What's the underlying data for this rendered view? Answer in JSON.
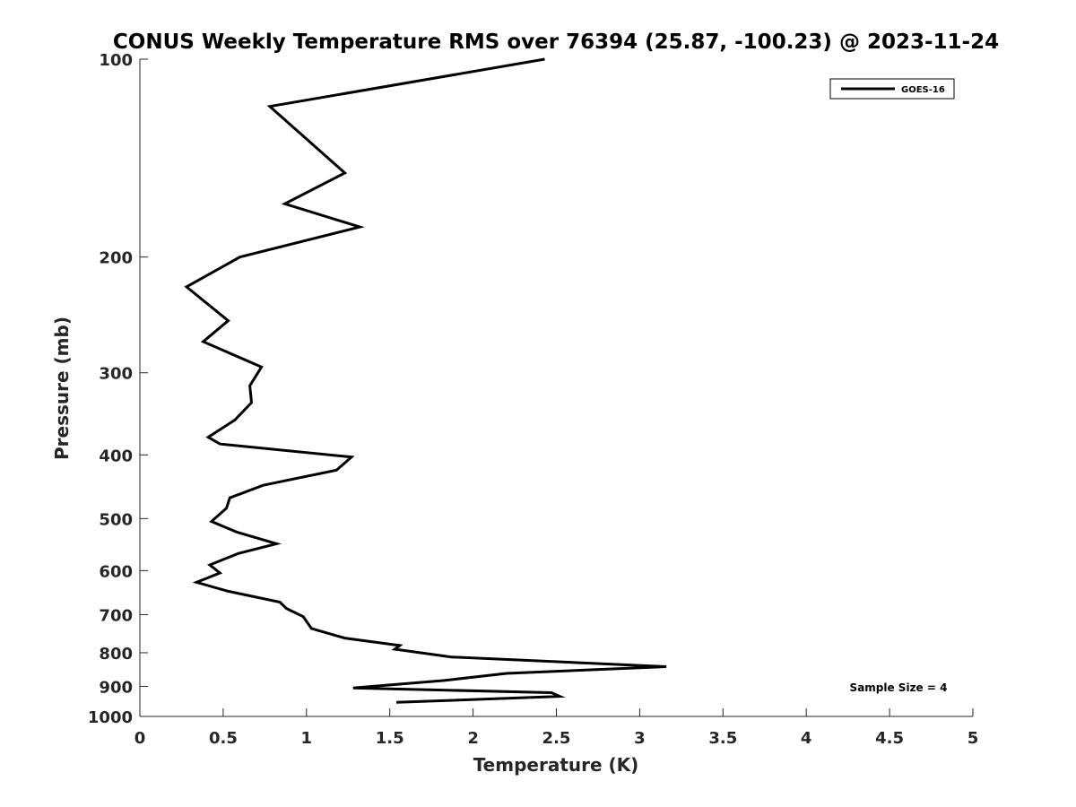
{
  "chart_data": {
    "type": "line",
    "title": "CONUS Weekly Temperature RMS over 76394 (25.87, -100.23) @ 2023-11-24",
    "xlabel": "Temperature (K)",
    "ylabel": "Pressure (mb)",
    "xlim": [
      0,
      5
    ],
    "ylim": [
      100,
      1000
    ],
    "yscale": "log",
    "y_reversed": true,
    "xticks": [
      0,
      0.5,
      1,
      1.5,
      2,
      2.5,
      3,
      3.5,
      4,
      4.5,
      5
    ],
    "xtick_labels": [
      "0",
      "0.5",
      "1",
      "1.5",
      "2",
      "2.5",
      "3",
      "3.5",
      "4",
      "4.5",
      "5"
    ],
    "yticks": [
      100,
      200,
      300,
      400,
      500,
      600,
      700,
      800,
      900,
      1000
    ],
    "ytick_labels": [
      "100",
      "200",
      "300",
      "400",
      "500",
      "600",
      "700",
      "800",
      "900",
      "1000"
    ],
    "grid": false,
    "legend_position": "top-right",
    "annotation": "Sample Size = 4",
    "series": [
      {
        "name": "GOES-16",
        "color": "#000000",
        "x": [
          2.43,
          0.78,
          1.23,
          0.87,
          1.32,
          0.6,
          0.28,
          0.53,
          0.38,
          0.73,
          0.66,
          0.67,
          0.57,
          0.41,
          0.48,
          1.27,
          1.18,
          0.74,
          0.54,
          0.52,
          0.43,
          0.58,
          0.82,
          0.59,
          0.42,
          0.48,
          0.34,
          0.53,
          0.84,
          0.88,
          0.98,
          1.03,
          1.23,
          1.56,
          1.53,
          1.87,
          3.16,
          2.2,
          1.82,
          1.28,
          2.47,
          2.52,
          1.54
        ],
        "y": [
          100,
          118,
          149,
          166,
          180,
          200,
          222,
          250,
          269,
          294,
          314,
          333,
          354,
          376,
          385,
          403,
          422,
          445,
          465,
          482,
          505,
          524,
          546,
          565,
          588,
          605,
          625,
          645,
          670,
          685,
          705,
          735,
          760,
          780,
          790,
          812,
          840,
          860,
          882,
          905,
          920,
          932,
          952
        ]
      }
    ]
  }
}
